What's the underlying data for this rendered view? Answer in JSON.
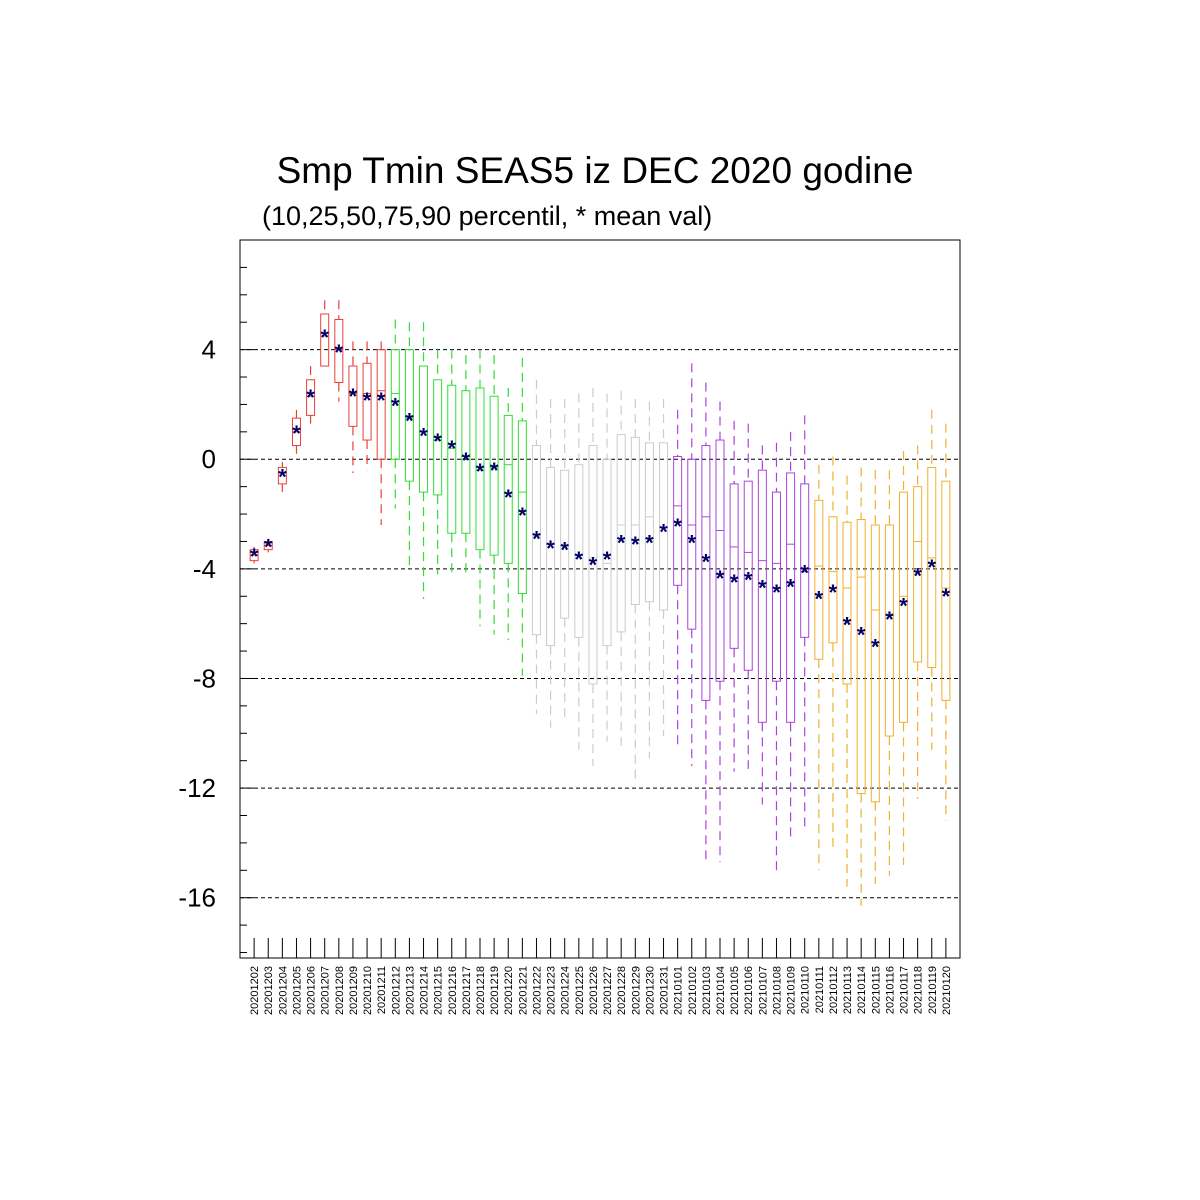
{
  "chart_data": {
    "type": "box",
    "title": "Smp Tmin SEAS5 iz DEC 2020 godine",
    "subtitle": "(10,25,50,75,90 percentil, * mean val)",
    "xlabel": "",
    "ylabel": "",
    "ylim": [
      -18.2,
      8
    ],
    "yticks": [
      4,
      0,
      -4,
      -8,
      -12,
      -16
    ],
    "grid": "dashed horizontal at labeled y ticks",
    "colors": {
      "red": "#e8403a",
      "green": "#33dd33",
      "gray": "#cccccc",
      "purple": "#aa44dd",
      "orange": "#f0b030",
      "mean": "#000066"
    },
    "categories": [
      "20201202",
      "20201203",
      "20201204",
      "20201205",
      "20201206",
      "20201207",
      "20201208",
      "20201209",
      "20201210",
      "20201211",
      "20201212",
      "20201213",
      "20201214",
      "20201215",
      "20201216",
      "20201217",
      "20201218",
      "20201219",
      "20201220",
      "20201221",
      "20201222",
      "20201223",
      "20201224",
      "20201225",
      "20201226",
      "20201227",
      "20201228",
      "20201229",
      "20201230",
      "20201231",
      "20210101",
      "20210102",
      "20210103",
      "20210104",
      "20210105",
      "20210106",
      "20210107",
      "20210108",
      "20210109",
      "20210110",
      "20210111",
      "20210112",
      "20210113",
      "20210114",
      "20210115",
      "20210116",
      "20210117",
      "20210118",
      "20210119",
      "20210120"
    ],
    "series": [
      {
        "color": "red",
        "boxes": [
          {
            "p10": -3.8,
            "p25": -3.7,
            "p50": -3.5,
            "p75": -3.3,
            "p90": -3.2,
            "mean": -3.5
          },
          {
            "p10": -3.4,
            "p25": -3.3,
            "p50": -3.15,
            "p75": -3.0,
            "p90": -2.9,
            "mean": -3.15
          },
          {
            "p10": -1.2,
            "p25": -0.9,
            "p50": -0.5,
            "p75": -0.3,
            "p90": -0.1,
            "mean": -0.6
          },
          {
            "p10": 0.2,
            "p25": 0.5,
            "p50": 1.0,
            "p75": 1.5,
            "p90": 1.8,
            "mean": 1.0
          },
          {
            "p10": 1.3,
            "p25": 1.6,
            "p50": 2.3,
            "p75": 2.9,
            "p90": 3.4,
            "mean": 2.3
          },
          {
            "p10": 3.4,
            "p25": 3.4,
            "p50": 4.5,
            "p75": 5.3,
            "p90": 5.8,
            "mean": 4.5
          },
          {
            "p10": 2.1,
            "p25": 2.8,
            "p50": 4.0,
            "p75": 5.1,
            "p90": 5.8,
            "mean": 3.95
          },
          {
            "p10": -0.5,
            "p25": 1.2,
            "p50": 2.4,
            "p75": 3.4,
            "p90": 4.3,
            "mean": 2.35
          },
          {
            "p10": -0.4,
            "p25": 0.7,
            "p50": 2.4,
            "p75": 3.5,
            "p90": 4.3,
            "mean": 2.2
          },
          {
            "p10": -2.4,
            "p25": 0.0,
            "p50": 2.5,
            "p75": 4.0,
            "p90": 4.3,
            "mean": 2.2
          }
        ]
      },
      {
        "color": "green",
        "boxes": [
          {
            "p10": -1.8,
            "p25": 0.0,
            "p50": 2.4,
            "p75": 4.0,
            "p90": 5.1,
            "mean": 2.0
          },
          {
            "p10": -4.0,
            "p25": -0.8,
            "p50": 1.5,
            "p75": 4.0,
            "p90": 5.0,
            "mean": 1.45
          },
          {
            "p10": -5.1,
            "p25": -1.2,
            "p50": 1.0,
            "p75": 3.4,
            "p90": 5.0,
            "mean": 0.9
          },
          {
            "p10": -4.2,
            "p25": -1.3,
            "p50": 0.7,
            "p75": 2.9,
            "p90": 4.0,
            "mean": 0.7
          },
          {
            "p10": -4.2,
            "p25": -2.7,
            "p50": 0.4,
            "p75": 2.7,
            "p90": 4.0,
            "mean": 0.45
          },
          {
            "p10": -4.2,
            "p25": -2.7,
            "p50": 0.1,
            "p75": 2.5,
            "p90": 3.8,
            "mean": 0.0
          },
          {
            "p10": -6.1,
            "p25": -3.3,
            "p50": -0.4,
            "p75": 2.6,
            "p90": 4.0,
            "mean": -0.4
          },
          {
            "p10": -6.4,
            "p25": -3.5,
            "p50": -0.3,
            "p75": 2.3,
            "p90": 3.8,
            "mean": -0.35
          },
          {
            "p10": -6.6,
            "p25": -3.8,
            "p50": -0.2,
            "p75": 1.6,
            "p90": 2.6,
            "mean": -1.35
          },
          {
            "p10": -7.9,
            "p25": -4.9,
            "p50": -1.2,
            "p75": 1.4,
            "p90": 3.7,
            "mean": -2.0
          }
        ]
      },
      {
        "color": "gray",
        "boxes": [
          {
            "p10": -9.3,
            "p25": -6.4,
            "p50": -2.8,
            "p75": 0.5,
            "p90": 2.9,
            "mean": -2.85
          },
          {
            "p10": -9.8,
            "p25": -6.8,
            "p50": -3.1,
            "p75": -0.3,
            "p90": 2.2,
            "mean": -3.2
          },
          {
            "p10": -9.6,
            "p25": -5.8,
            "p50": -3.1,
            "p75": -0.4,
            "p90": 2.2,
            "mean": -3.25
          },
          {
            "p10": -10.6,
            "p25": -6.5,
            "p50": -3.6,
            "p75": -0.2,
            "p90": 2.4,
            "mean": -3.6
          },
          {
            "p10": -11.2,
            "p25": -8.2,
            "p50": -3.6,
            "p75": 0.5,
            "p90": 2.6,
            "mean": -3.8
          },
          {
            "p10": -10.3,
            "p25": -6.8,
            "p50": -3.8,
            "p75": 0.0,
            "p90": 2.4,
            "mean": -3.6
          },
          {
            "p10": -10.6,
            "p25": -6.3,
            "p50": -2.4,
            "p75": 0.9,
            "p90": 2.5,
            "mean": -3.0
          },
          {
            "p10": -11.7,
            "p25": -5.3,
            "p50": -2.4,
            "p75": 0.8,
            "p90": 2.2,
            "mean": -3.05
          },
          {
            "p10": -10.9,
            "p25": -5.2,
            "p50": -2.1,
            "p75": 0.6,
            "p90": 2.1,
            "mean": -3.0
          },
          {
            "p10": -10.1,
            "p25": -5.5,
            "p50": -2.5,
            "p75": 0.6,
            "p90": 2.2,
            "mean": -2.6
          }
        ]
      },
      {
        "color": "purple",
        "boxes": [
          {
            "p10": -10.5,
            "p25": -4.6,
            "p50": -1.7,
            "p75": 0.1,
            "p90": 1.8,
            "mean": -2.4
          },
          {
            "p10": -11.2,
            "p25": -6.2,
            "p50": -2.4,
            "p75": 0.0,
            "p90": 3.5,
            "mean": -3.0
          },
          {
            "p10": -14.8,
            "p25": -8.8,
            "p50": -2.1,
            "p75": 0.5,
            "p90": 2.8,
            "mean": -3.7
          },
          {
            "p10": -14.7,
            "p25": -8.1,
            "p50": -2.6,
            "p75": 0.7,
            "p90": 2.1,
            "mean": -4.3
          },
          {
            "p10": -11.4,
            "p25": -6.9,
            "p50": -3.2,
            "p75": -0.9,
            "p90": 1.4,
            "mean": -4.45
          },
          {
            "p10": -11.3,
            "p25": -7.7,
            "p50": -3.4,
            "p75": -0.8,
            "p90": 1.3,
            "mean": -4.35
          },
          {
            "p10": -12.6,
            "p25": -9.6,
            "p50": -3.7,
            "p75": -0.4,
            "p90": 0.5,
            "mean": -4.65
          },
          {
            "p10": -15.2,
            "p25": -8.1,
            "p50": -3.8,
            "p75": -1.2,
            "p90": 0.6,
            "mean": -4.8
          },
          {
            "p10": -13.8,
            "p25": -9.6,
            "p50": -3.1,
            "p75": -0.5,
            "p90": 1.0,
            "mean": -4.6
          },
          {
            "p10": -13.4,
            "p25": -6.5,
            "p50": -4.1,
            "p75": -0.9,
            "p90": 1.6,
            "mean": -4.1
          }
        ]
      },
      {
        "color": "orange",
        "boxes": [
          {
            "p10": -15.0,
            "p25": -7.3,
            "p50": -3.9,
            "p75": -1.5,
            "p90": -0.2,
            "mean": -5.05
          },
          {
            "p10": -14.3,
            "p25": -6.7,
            "p50": -4.1,
            "p75": -2.1,
            "p90": 0.1,
            "mean": -4.8
          },
          {
            "p10": -15.6,
            "p25": -8.2,
            "p50": -4.7,
            "p75": -2.3,
            "p90": -0.6,
            "mean": -6.0
          },
          {
            "p10": -16.3,
            "p25": -12.2,
            "p50": -4.3,
            "p75": -2.2,
            "p90": -0.3,
            "mean": -6.35
          },
          {
            "p10": -15.5,
            "p25": -12.5,
            "p50": -5.5,
            "p75": -2.4,
            "p90": -0.4,
            "mean": -6.8
          },
          {
            "p10": -15.2,
            "p25": -10.1,
            "p50": -5.7,
            "p75": -2.4,
            "p90": -0.4,
            "mean": -5.8
          },
          {
            "p10": -14.8,
            "p25": -9.6,
            "p50": -5.0,
            "p75": -1.2,
            "p90": 0.3,
            "mean": -5.3
          },
          {
            "p10": -12.4,
            "p25": -7.4,
            "p50": -3.0,
            "p75": -1.0,
            "p90": 0.5,
            "mean": -4.2
          },
          {
            "p10": -10.6,
            "p25": -7.6,
            "p50": -3.6,
            "p75": -0.3,
            "p90": 1.8,
            "mean": -3.9
          },
          {
            "p10": -13.2,
            "p25": -8.8,
            "p50": -4.7,
            "p75": -0.8,
            "p90": 1.3,
            "mean": -4.95
          }
        ]
      }
    ]
  }
}
